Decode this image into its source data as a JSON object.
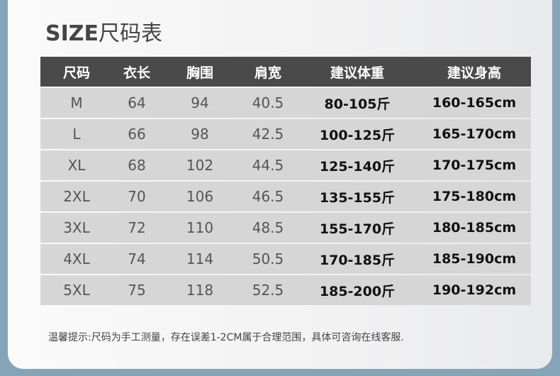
{
  "title": {
    "en": "SIZE",
    "cn": "尺码表"
  },
  "table": {
    "headers": [
      "尺码",
      "衣长",
      "胸围",
      "肩宽",
      "建议体重",
      "建议身高"
    ],
    "rows": [
      [
        "M",
        "64",
        "94",
        "40.5",
        "80-105斤",
        "160-165cm"
      ],
      [
        "L",
        "66",
        "98",
        "42.5",
        "100-125斤",
        "165-170cm"
      ],
      [
        "XL",
        "68",
        "102",
        "44.5",
        "125-140斤",
        "170-175cm"
      ],
      [
        "2XL",
        "70",
        "106",
        "46.5",
        "135-155斤",
        "175-180cm"
      ],
      [
        "3XL",
        "72",
        "110",
        "48.5",
        "155-170斤",
        "180-185cm"
      ],
      [
        "4XL",
        "74",
        "114",
        "50.5",
        "170-185斤",
        "185-190cm"
      ],
      [
        "5XL",
        "75",
        "118",
        "52.5",
        "185-200斤",
        "190-192cm"
      ]
    ]
  },
  "note": "温馨提示:尺码为手工测量，存在误差1-2CM属于合理范围，具体可咨询在线客服.",
  "colors": {
    "header_bg": "#4a4a4a",
    "row_bg": "#d6d6d6",
    "frame": "#86a4b8"
  }
}
